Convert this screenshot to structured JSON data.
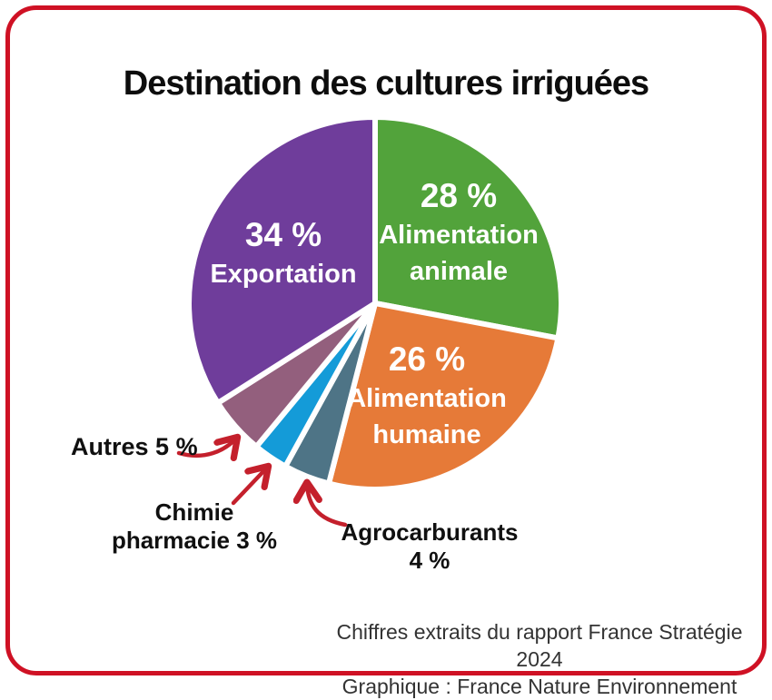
{
  "title": "Destination des cultures irriguées",
  "colors": {
    "border_red": "#CF1124",
    "arrow_red": "#C4202C",
    "slice_gap": "#FFFFFF",
    "inside_label_text": "#FFFFFF",
    "callout_text": "#101010",
    "title_text": "#0D0D0D",
    "footer_text": "#333333"
  },
  "chart_data": {
    "type": "pie",
    "title": "Destination des cultures irriguées",
    "total": 100,
    "start_angle_deg": 0,
    "direction": "clockwise",
    "legend_position": "none",
    "slices": [
      {
        "name": "Alimentation animale",
        "value": 28,
        "color": "#52A33B",
        "pct_label": "28 %",
        "label_lines": [
          "Alimentation",
          "animale"
        ],
        "label_placement": "inside"
      },
      {
        "name": "Alimentation humaine",
        "value": 26,
        "color": "#E67A38",
        "pct_label": "26 %",
        "label_lines": [
          "Alimentation",
          "humaine"
        ],
        "label_placement": "inside"
      },
      {
        "name": "Agrocarburants",
        "value": 4,
        "color": "#4E7486",
        "pct_label": "4 %",
        "label_lines": [
          "Agrocarburants"
        ],
        "label_placement": "outside"
      },
      {
        "name": "Chimie pharmacie",
        "value": 3,
        "color": "#149BD8",
        "pct_label": "3 %",
        "label_lines": [
          "Chimie",
          "pharmacie"
        ],
        "label_placement": "outside"
      },
      {
        "name": "Autres",
        "value": 5,
        "color": "#935F7D",
        "pct_label": "5 %",
        "label_lines": [
          "Autres"
        ],
        "label_placement": "outside"
      },
      {
        "name": "Exportation",
        "value": 34,
        "color": "#6F3D9B",
        "pct_label": "34 %",
        "label_lines": [
          "Exportation"
        ],
        "label_placement": "inside"
      }
    ]
  },
  "footer": {
    "line1": "Chiffres extraits du rapport France Stratégie 2024",
    "line2": "Graphique : France Nature Environnement"
  }
}
